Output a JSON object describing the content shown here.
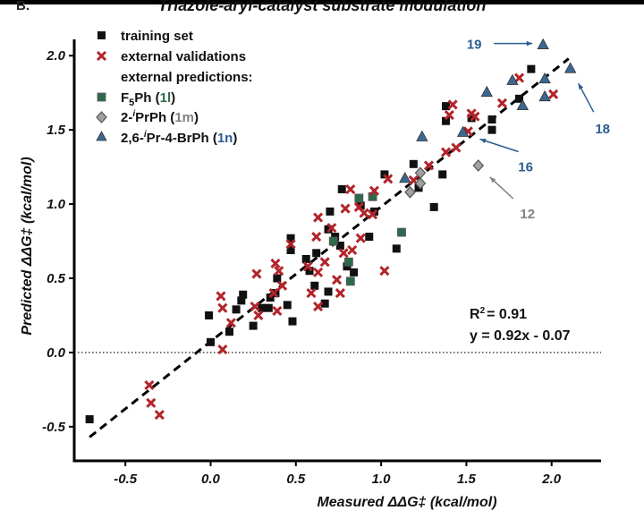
{
  "panel_label": "B.",
  "chart_data": {
    "type": "scatter",
    "title": "Triazole-aryl-catalyst substrate modulation",
    "xlabel": "Measured ΔΔG‡ (kcal/mol)",
    "ylabel": "Predicted ΔΔG‡ (kcal/mol)",
    "xlim": [
      -0.8,
      2.29
    ],
    "ylim": [
      -0.73,
      2.11
    ],
    "xticks": [
      "-0.5",
      "0.0",
      "0.5",
      "1.0",
      "1.5",
      "2.0"
    ],
    "yticks": [
      "-0.5",
      "0.0",
      "0.5",
      "1.0",
      "1.5",
      "2.0"
    ],
    "grid": false,
    "zero_line": "dotted",
    "legend_position": "top-left",
    "stats": {
      "r2_label": "R",
      "r2_sup": "2",
      "r2_value": "= 0.91",
      "equation": "y = 0.92x - 0.07"
    },
    "fit_line": [
      [
        -0.71,
        -0.57
      ],
      [
        2.1,
        1.98
      ]
    ],
    "legend": {
      "training": "training set",
      "validation": "external validations",
      "predictions_header": "external predictions:",
      "f5ph": {
        "pre": "F",
        "sub": "5",
        "post": "Ph (",
        "id": "1l",
        "close": ")"
      },
      "iprph": {
        "pre": "2-",
        "sup": "i",
        "post": "PrPh (",
        "id": "1m",
        "close": ")"
      },
      "brph": {
        "pre": "2,6-",
        "sup": "i",
        "post": "Pr-4-BrPh (",
        "id": "1n",
        "close": ")"
      }
    },
    "colors": {
      "training": "#111111",
      "validation": "#b3242a",
      "f5ph": "#2d6b4c",
      "iprph": "#a0a0a0",
      "brph": "#3b6891",
      "label_blue": "#2b5c94",
      "label_gray": "#808080"
    },
    "series": [
      {
        "name": "training set",
        "marker": "square",
        "points": [
          [
            -0.71,
            -0.45
          ],
          [
            0.0,
            0.07
          ],
          [
            -0.01,
            0.25
          ],
          [
            0.11,
            0.14
          ],
          [
            0.15,
            0.29
          ],
          [
            0.18,
            0.35
          ],
          [
            0.19,
            0.39
          ],
          [
            0.25,
            0.18
          ],
          [
            0.3,
            0.3
          ],
          [
            0.34,
            0.3
          ],
          [
            0.35,
            0.37
          ],
          [
            0.38,
            0.4
          ],
          [
            0.39,
            0.5
          ],
          [
            0.45,
            0.32
          ],
          [
            0.48,
            0.21
          ],
          [
            0.47,
            0.77
          ],
          [
            0.47,
            0.69
          ],
          [
            0.56,
            0.63
          ],
          [
            0.58,
            0.55
          ],
          [
            0.61,
            0.45
          ],
          [
            0.62,
            0.67
          ],
          [
            0.67,
            0.33
          ],
          [
            0.69,
            0.41
          ],
          [
            0.7,
            0.95
          ],
          [
            0.69,
            0.83
          ],
          [
            0.73,
            0.78
          ],
          [
            0.76,
            0.72
          ],
          [
            0.77,
            1.1
          ],
          [
            0.8,
            0.58
          ],
          [
            0.84,
            0.54
          ],
          [
            0.88,
            0.99
          ],
          [
            0.93,
            0.78
          ],
          [
            0.96,
            0.95
          ],
          [
            1.02,
            1.2
          ],
          [
            1.09,
            0.7
          ],
          [
            1.19,
            1.27
          ],
          [
            1.36,
            1.2
          ],
          [
            1.22,
            1.11
          ],
          [
            1.31,
            0.98
          ],
          [
            1.38,
            1.66
          ],
          [
            1.38,
            1.56
          ],
          [
            1.53,
            1.58
          ],
          [
            1.65,
            1.57
          ],
          [
            1.65,
            1.5
          ],
          [
            1.81,
            1.71
          ],
          [
            1.88,
            1.91
          ]
        ]
      },
      {
        "name": "external validations",
        "marker": "x",
        "points": [
          [
            -0.36,
            -0.22
          ],
          [
            -0.35,
            -0.34
          ],
          [
            -0.3,
            -0.42
          ],
          [
            0.07,
            0.02
          ],
          [
            0.06,
            0.38
          ],
          [
            0.07,
            0.3
          ],
          [
            0.12,
            0.2
          ],
          [
            0.26,
            0.31
          ],
          [
            0.27,
            0.53
          ],
          [
            0.28,
            0.25
          ],
          [
            0.38,
            0.6
          ],
          [
            0.4,
            0.55
          ],
          [
            0.39,
            0.28
          ],
          [
            0.37,
            0.4
          ],
          [
            0.42,
            0.45
          ],
          [
            0.47,
            0.73
          ],
          [
            0.57,
            0.58
          ],
          [
            0.59,
            0.4
          ],
          [
            0.63,
            0.31
          ],
          [
            0.63,
            0.91
          ],
          [
            0.62,
            0.78
          ],
          [
            0.63,
            0.54
          ],
          [
            0.67,
            0.61
          ],
          [
            0.71,
            0.84
          ],
          [
            0.74,
            0.49
          ],
          [
            0.76,
            0.4
          ],
          [
            0.78,
            0.67
          ],
          [
            0.83,
            0.69
          ],
          [
            0.79,
            0.97
          ],
          [
            0.82,
            1.1
          ],
          [
            0.87,
            0.98
          ],
          [
            0.88,
            0.77
          ],
          [
            0.9,
            0.94
          ],
          [
            0.95,
            0.93
          ],
          [
            0.96,
            1.09
          ],
          [
            1.02,
            0.55
          ],
          [
            1.04,
            1.17
          ],
          [
            1.19,
            1.16
          ],
          [
            1.28,
            1.26
          ],
          [
            1.38,
            1.35
          ],
          [
            1.44,
            1.38
          ],
          [
            1.51,
            1.49
          ],
          [
            1.4,
            1.6
          ],
          [
            1.42,
            1.67
          ],
          [
            1.53,
            1.61
          ],
          [
            1.55,
            1.59
          ],
          [
            1.71,
            1.68
          ],
          [
            1.81,
            1.85
          ],
          [
            2.01,
            1.74
          ]
        ]
      },
      {
        "name": "F5Ph (1l)",
        "marker": "square",
        "points": [
          [
            0.72,
            0.75
          ],
          [
            0.81,
            0.61
          ],
          [
            0.82,
            0.48
          ],
          [
            0.87,
            1.04
          ],
          [
            0.95,
            1.05
          ],
          [
            1.12,
            0.81
          ]
        ]
      },
      {
        "name": "2-iPrPh (1m)",
        "marker": "diamond",
        "points": [
          [
            1.57,
            1.26
          ],
          [
            1.23,
            1.21
          ],
          [
            1.23,
            1.14
          ],
          [
            1.17,
            1.08
          ]
        ]
      },
      {
        "name": "2,6-iPr-4-BrPh (1n)",
        "marker": "triangle",
        "points": [
          [
            1.95,
            2.07
          ],
          [
            2.11,
            1.91
          ],
          [
            1.77,
            1.83
          ],
          [
            1.96,
            1.84
          ],
          [
            1.62,
            1.75
          ],
          [
            1.83,
            1.66
          ],
          [
            1.96,
            1.72
          ],
          [
            1.24,
            1.45
          ],
          [
            1.48,
            1.48
          ],
          [
            1.14,
            1.17
          ]
        ]
      }
    ],
    "annotations": [
      {
        "text": "19",
        "color": "blue",
        "point": [
          1.95,
          2.07
        ]
      },
      {
        "text": "18",
        "color": "blue",
        "point": [
          2.11,
          1.91
        ]
      },
      {
        "text": "16",
        "color": "blue",
        "point": [
          1.48,
          1.48
        ]
      },
      {
        "text": "12",
        "color": "gray",
        "point": [
          1.57,
          1.26
        ]
      }
    ]
  }
}
